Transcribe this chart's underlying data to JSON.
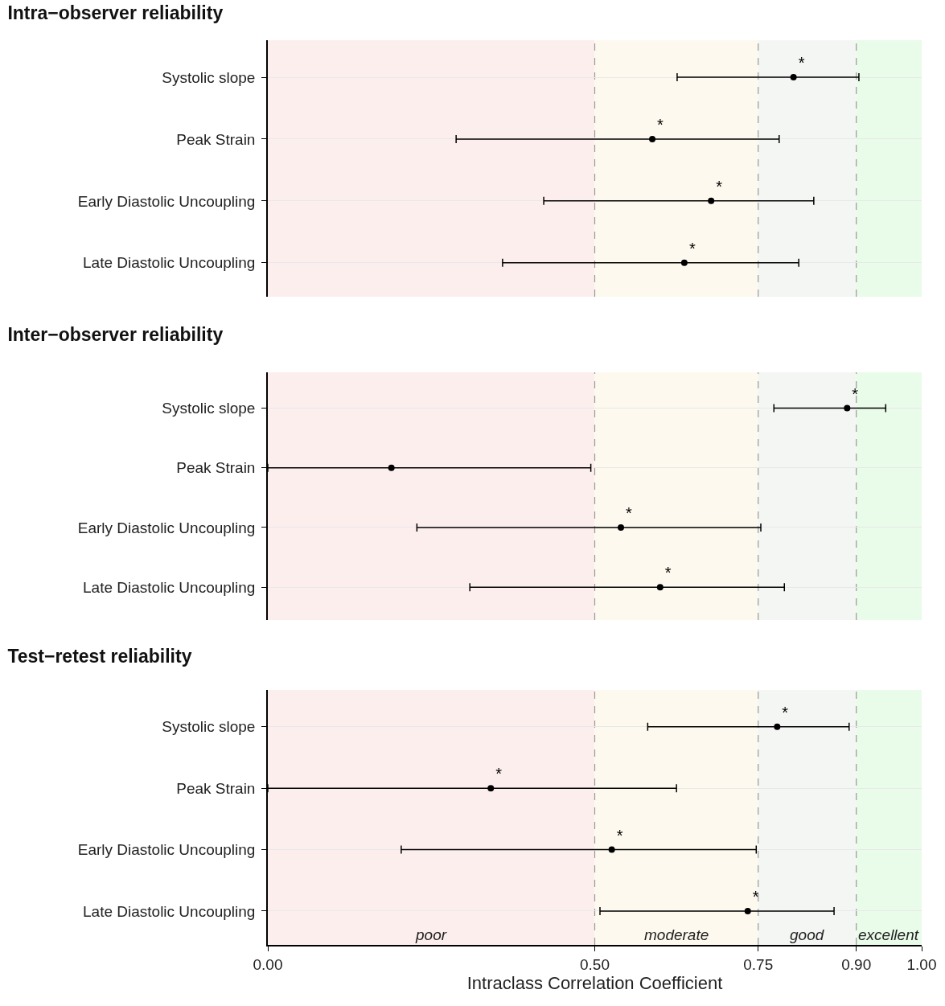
{
  "chart_data": [
    {
      "type": "scatter",
      "orientation": "horizontal",
      "title": "Intra−observer reliability",
      "categories": [
        "Systolic slope",
        "Peak Strain",
        "Early Diastolic Uncoupling",
        "Late Diastolic Uncoupling"
      ],
      "series": [
        {
          "color": "#000000",
          "values": [
            0.804,
            0.588,
            0.678,
            0.637
          ],
          "errors": [
            [
              0.626,
              0.904
            ],
            [
              0.288,
              0.782
            ],
            [
              0.422,
              0.835
            ],
            [
              0.359,
              0.812
            ]
          ],
          "value_labels": [
            "*",
            "*",
            "*",
            "*"
          ]
        }
      ],
      "xlim": [
        0,
        1
      ],
      "bands": [
        {
          "axis": "x",
          "from": 0,
          "to": 0.5,
          "color": "#fdeeee"
        },
        {
          "axis": "x",
          "from": 0.5,
          "to": 0.75,
          "color": "#fdf9ee"
        },
        {
          "axis": "x",
          "from": 0.75,
          "to": 0.9,
          "color": "#f4f6f4"
        },
        {
          "axis": "x",
          "from": 0.9,
          "to": 1,
          "color": "#e9fbe9"
        }
      ],
      "ref_lines": [
        {
          "axis": "x",
          "value": 0.5,
          "color": "#999999",
          "line_style": "dashed"
        },
        {
          "axis": "x",
          "value": 0.75,
          "color": "#999999",
          "line_style": "dashed"
        },
        {
          "axis": "x",
          "value": 0.9,
          "color": "#999999",
          "line_style": "dashed"
        }
      ],
      "tick_labels": "y",
      "grid": "y",
      "marker": "circle"
    },
    {
      "type": "scatter",
      "orientation": "horizontal",
      "title": "Inter−observer reliability",
      "categories": [
        "Systolic slope",
        "Peak Strain",
        "Early Diastolic Uncoupling",
        "Late Diastolic Uncoupling"
      ],
      "series": [
        {
          "color": "#000000",
          "values": [
            0.886,
            0.189,
            0.54,
            0.6
          ],
          "errors": [
            [
              0.774,
              0.945
            ],
            [
              0,
              0.494
            ],
            [
              0.228,
              0.754
            ],
            [
              0.309,
              0.79
            ]
          ],
          "value_labels": [
            "*",
            null,
            "*",
            "*"
          ]
        }
      ],
      "xlim": [
        0,
        1
      ],
      "bands": [
        {
          "axis": "x",
          "from": 0,
          "to": 0.5,
          "color": "#fdeeee"
        },
        {
          "axis": "x",
          "from": 0.5,
          "to": 0.75,
          "color": "#fdf9ee"
        },
        {
          "axis": "x",
          "from": 0.75,
          "to": 0.9,
          "color": "#f4f6f4"
        },
        {
          "axis": "x",
          "from": 0.9,
          "to": 1,
          "color": "#e9fbe9"
        }
      ],
      "ref_lines": [
        {
          "axis": "x",
          "value": 0.5,
          "color": "#999999",
          "line_style": "dashed"
        },
        {
          "axis": "x",
          "value": 0.75,
          "color": "#999999",
          "line_style": "dashed"
        },
        {
          "axis": "x",
          "value": 0.9,
          "color": "#999999",
          "line_style": "dashed"
        }
      ],
      "tick_labels": "y",
      "grid": "y",
      "marker": "circle"
    },
    {
      "type": "scatter",
      "orientation": "horizontal",
      "title": "Test−retest reliability",
      "xlabel": "Intraclass Correlation Coefficient",
      "categories": [
        "Systolic slope",
        "Peak Strain",
        "Early Diastolic Uncoupling",
        "Late Diastolic Uncoupling"
      ],
      "series": [
        {
          "color": "#000000",
          "values": [
            0.779,
            0.341,
            0.526,
            0.734
          ],
          "errors": [
            [
              0.581,
              0.889
            ],
            [
              0,
              0.625
            ],
            [
              0.204,
              0.747
            ],
            [
              0.508,
              0.866
            ]
          ],
          "value_labels": [
            "*",
            "*",
            "*",
            "*"
          ]
        }
      ],
      "xlim": [
        0,
        1
      ],
      "xticks": [
        {
          "value": 0,
          "label": "0.00"
        },
        {
          "value": 0.5,
          "label": "0.50"
        },
        {
          "value": 0.75,
          "label": "0.75"
        },
        {
          "value": 0.9,
          "label": "0.90"
        },
        {
          "value": 1,
          "label": "1.00"
        }
      ],
      "bands": [
        {
          "axis": "x",
          "from": 0,
          "to": 0.5,
          "color": "#fdeeee",
          "label": "poor"
        },
        {
          "axis": "x",
          "from": 0.5,
          "to": 0.75,
          "color": "#fdf9ee",
          "label": "moderate"
        },
        {
          "axis": "x",
          "from": 0.75,
          "to": 0.9,
          "color": "#f4f6f4",
          "label": "good"
        },
        {
          "axis": "x",
          "from": 0.9,
          "to": 1,
          "color": "#e9fbe9",
          "label": "excellent"
        }
      ],
      "ref_lines": [
        {
          "axis": "x",
          "value": 0.5,
          "color": "#999999",
          "line_style": "dashed"
        },
        {
          "axis": "x",
          "value": 0.75,
          "color": "#999999",
          "line_style": "dashed"
        },
        {
          "axis": "x",
          "value": 0.9,
          "color": "#999999",
          "line_style": "dashed"
        }
      ],
      "grid": "y",
      "marker": "circle"
    }
  ]
}
